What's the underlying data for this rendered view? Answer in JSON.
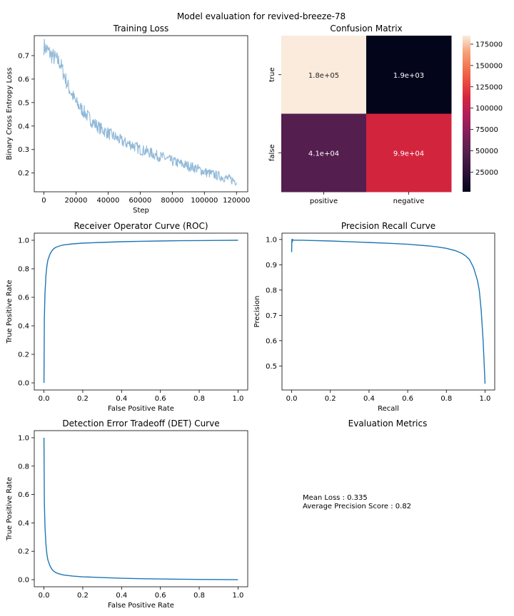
{
  "suptitle": "Model evaluation for revived-breeze-78",
  "chart_data": [
    {
      "id": "loss",
      "type": "line",
      "title": "Training Loss",
      "xlabel": "Step",
      "ylabel": "Binary Cross Entropy Loss",
      "xlim": [
        -6000,
        127000
      ],
      "ylim": [
        0.12,
        0.785
      ],
      "xticks": [
        0,
        20000,
        40000,
        60000,
        80000,
        100000,
        120000
      ],
      "yticks": [
        0.2,
        0.3,
        0.4,
        0.5,
        0.6,
        0.7
      ],
      "ytick_labels": [
        "0.2",
        "0.3",
        "0.4",
        "0.5",
        "0.6",
        "0.7"
      ],
      "color": "#8fb8d8",
      "noisy": true,
      "series": [
        {
          "x": [
            0,
            5000,
            10000,
            15000,
            20000,
            25000,
            30000,
            35000,
            40000,
            45000,
            50000,
            55000,
            60000,
            65000,
            70000,
            75000,
            80000,
            85000,
            90000,
            95000,
            100000,
            105000,
            110000,
            115000,
            120000
          ],
          "y": [
            0.74,
            0.7,
            0.67,
            0.57,
            0.5,
            0.46,
            0.42,
            0.39,
            0.37,
            0.35,
            0.33,
            0.32,
            0.3,
            0.29,
            0.275,
            0.265,
            0.25,
            0.24,
            0.23,
            0.22,
            0.205,
            0.195,
            0.185,
            0.175,
            0.165
          ]
        }
      ]
    },
    {
      "id": "confusion",
      "type": "heatmap",
      "title": "Confusion Matrix",
      "row_labels": [
        "true",
        "false"
      ],
      "col_labels": [
        "positive",
        "negative"
      ],
      "values": [
        [
          180000,
          1900
        ],
        [
          41000,
          99000
        ]
      ],
      "annotations": [
        [
          "1.8e+05",
          "1.9e+03"
        ],
        [
          "4.1e+04",
          "9.9e+04"
        ]
      ],
      "cell_colors": [
        [
          "#faebdd",
          "#03051a"
        ],
        [
          "#541e4e",
          "#d3243e"
        ]
      ],
      "colorbar": {
        "min": 1900,
        "max": 185000,
        "ticks": [
          25000,
          50000,
          75000,
          100000,
          125000,
          150000,
          175000
        ],
        "tick_labels": [
          "25000",
          "50000",
          "75000",
          "100000",
          "125000",
          "150000",
          "175000"
        ]
      }
    },
    {
      "id": "roc",
      "type": "line",
      "title": "Receiver Operator Curve (ROC)",
      "xlabel": "False Positive Rate",
      "ylabel": "True Positive Rate",
      "xlim": [
        -0.05,
        1.05
      ],
      "ylim": [
        -0.05,
        1.05
      ],
      "xticks": [
        0,
        0.2,
        0.4,
        0.6,
        0.8,
        1.0
      ],
      "xtick_labels": [
        "0.0",
        "0.2",
        "0.4",
        "0.6",
        "0.8",
        "1.0"
      ],
      "yticks": [
        0,
        0.2,
        0.4,
        0.6,
        0.8,
        1.0
      ],
      "ytick_labels": [
        "0.0",
        "0.2",
        "0.4",
        "0.6",
        "0.8",
        "1.0"
      ],
      "color": "#1f77b4",
      "series": [
        {
          "x": [
            0,
            0.002,
            0.005,
            0.01,
            0.015,
            0.02,
            0.03,
            0.04,
            0.05,
            0.06,
            0.08,
            0.1,
            0.15,
            0.2,
            0.3,
            0.4,
            0.5,
            0.6,
            0.7,
            0.8,
            0.9,
            1.0
          ],
          "y": [
            0,
            0.45,
            0.62,
            0.75,
            0.82,
            0.86,
            0.9,
            0.925,
            0.94,
            0.95,
            0.96,
            0.967,
            0.975,
            0.98,
            0.985,
            0.99,
            0.993,
            0.995,
            0.997,
            0.998,
            0.999,
            1.0
          ]
        }
      ]
    },
    {
      "id": "pr",
      "type": "line",
      "title": "Precision Recall Curve",
      "xlabel": "Recall",
      "ylabel": "Precision",
      "xlim": [
        -0.05,
        1.05
      ],
      "ylim": [
        0.405,
        1.025
      ],
      "xticks": [
        0,
        0.2,
        0.4,
        0.6,
        0.8,
        1.0
      ],
      "xtick_labels": [
        "0.0",
        "0.2",
        "0.4",
        "0.6",
        "0.8",
        "1.0"
      ],
      "yticks": [
        0.5,
        0.6,
        0.7,
        0.8,
        0.9,
        1.0
      ],
      "ytick_labels": [
        "0.5",
        "0.6",
        "0.7",
        "0.8",
        "0.9",
        "1.0"
      ],
      "color": "#1f77b4",
      "series": [
        {
          "x": [
            0,
            0.001,
            0.003,
            0.005,
            0.01,
            0.05,
            0.1,
            0.2,
            0.3,
            0.4,
            0.5,
            0.6,
            0.7,
            0.75,
            0.8,
            0.85,
            0.88,
            0.9,
            0.92,
            0.94,
            0.96,
            0.97,
            0.98,
            0.99,
            1.0
          ],
          "y": [
            0.95,
            1.0,
            0.99,
            1.0,
            0.997,
            0.997,
            0.996,
            0.994,
            0.991,
            0.988,
            0.985,
            0.981,
            0.975,
            0.971,
            0.965,
            0.955,
            0.945,
            0.935,
            0.92,
            0.89,
            0.84,
            0.8,
            0.72,
            0.6,
            0.43
          ]
        }
      ]
    },
    {
      "id": "det",
      "type": "line",
      "title": "Detection Error Tradeoff (DET) Curve",
      "xlabel": "False Positive Rate",
      "ylabel": "True Positive Rate",
      "xlim": [
        -0.05,
        1.05
      ],
      "ylim": [
        -0.05,
        1.05
      ],
      "xticks": [
        0,
        0.2,
        0.4,
        0.6,
        0.8,
        1.0
      ],
      "xtick_labels": [
        "0.0",
        "0.2",
        "0.4",
        "0.6",
        "0.8",
        "1.0"
      ],
      "yticks": [
        0,
        0.2,
        0.4,
        0.6,
        0.8,
        1.0
      ],
      "ytick_labels": [
        "0.0",
        "0.2",
        "0.4",
        "0.6",
        "0.8",
        "1.0"
      ],
      "color": "#1f77b4",
      "series": [
        {
          "x": [
            0,
            0.002,
            0.005,
            0.01,
            0.015,
            0.02,
            0.03,
            0.04,
            0.05,
            0.06,
            0.08,
            0.1,
            0.15,
            0.2,
            0.3,
            0.4,
            0.5,
            0.6,
            0.7,
            0.8,
            0.9,
            1.0
          ],
          "y": [
            1.0,
            0.55,
            0.38,
            0.25,
            0.18,
            0.14,
            0.1,
            0.075,
            0.06,
            0.05,
            0.04,
            0.033,
            0.025,
            0.02,
            0.015,
            0.01,
            0.007,
            0.005,
            0.003,
            0.002,
            0.001,
            0.0
          ]
        }
      ]
    }
  ],
  "metrics": {
    "title": "Evaluation Metrics",
    "lines": [
      "Mean Loss : 0.335",
      "Average Precision Score : 0.82"
    ]
  }
}
